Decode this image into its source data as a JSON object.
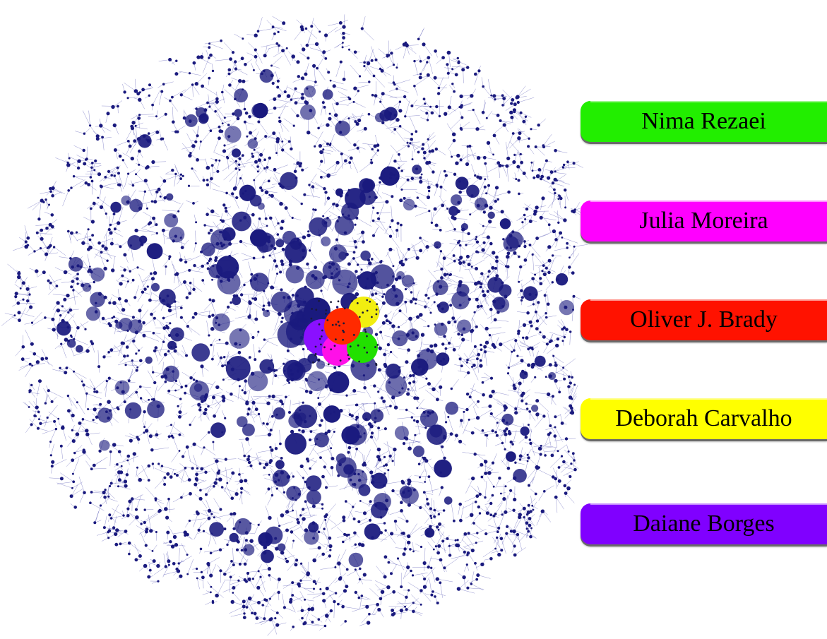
{
  "diagram": {
    "node_color": "#1a1a7e",
    "edge_color": "#3b3ba8",
    "background": "#ffffff"
  },
  "highlighted_authors": [
    {
      "name": "Nima Rezaei",
      "color": "#22ee00"
    },
    {
      "name": "Julia Moreira",
      "color": "#ff00ff"
    },
    {
      "name": "Oliver J. Brady",
      "color": "#ff1200"
    },
    {
      "name": "Deborah Carvalho",
      "color": "#ffff00"
    },
    {
      "name": "Daiane Borges",
      "color": "#8000ff"
    }
  ]
}
